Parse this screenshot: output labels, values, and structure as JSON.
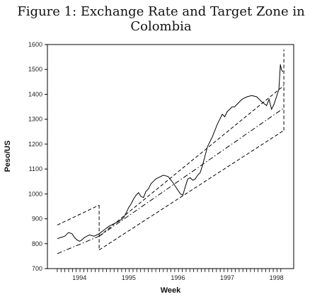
{
  "figure_title": "Figure 1: Exchange Rate and Target Zone in Colombia",
  "chart_data": {
    "type": "line",
    "title": "Figure 1: Exchange Rate and Target Zone in Colombia",
    "xlabel": "Week",
    "ylabel": "Peso/US",
    "ylim": [
      700,
      1600
    ],
    "xlim": [
      1993.35,
      1998.35
    ],
    "yticks": [
      700,
      800,
      900,
      1000,
      1100,
      1200,
      1300,
      1400,
      1500,
      1600
    ],
    "xtick_labels": [
      "1994",
      "1995",
      "1996",
      "1997",
      "1998"
    ],
    "xtick_positions": [
      1994.0,
      1995.0,
      1996.0,
      1997.0,
      1998.0
    ],
    "grid": false,
    "legend": "none",
    "series": [
      {
        "style": "solid",
        "x": [
          1993.55,
          1993.62,
          1993.7,
          1993.78,
          1993.85,
          1993.9,
          1993.95,
          1994.0,
          1994.05,
          1994.1,
          1994.15,
          1994.2,
          1994.3,
          1994.4,
          1994.5,
          1994.6,
          1994.7,
          1994.8,
          1994.9,
          1995.0,
          1995.05,
          1995.1,
          1995.15,
          1995.2,
          1995.25,
          1995.3,
          1995.35,
          1995.4,
          1995.45,
          1995.5,
          1995.55,
          1995.6,
          1995.7,
          1995.8,
          1995.9,
          1996.0,
          1996.05,
          1996.1,
          1996.15,
          1996.2,
          1996.25,
          1996.3,
          1996.35,
          1996.4,
          1996.45,
          1996.5,
          1996.6,
          1996.7,
          1996.8,
          1996.85,
          1996.9,
          1996.95,
          1997.0,
          1997.05,
          1997.1,
          1997.15,
          1997.2,
          1997.25,
          1997.3,
          1997.35,
          1997.4,
          1997.5,
          1997.6,
          1997.7,
          1997.8,
          1997.85,
          1997.9,
          1997.95,
          1998.0,
          1998.05,
          1998.08,
          1998.1,
          1998.13
        ],
        "y": [
          820,
          825,
          830,
          845,
          840,
          825,
          815,
          810,
          815,
          825,
          830,
          835,
          830,
          840,
          855,
          870,
          880,
          890,
          905,
          945,
          960,
          980,
          995,
          1005,
          990,
          985,
          1010,
          1020,
          1040,
          1050,
          1060,
          1065,
          1075,
          1070,
          1045,
          1015,
          1000,
          995,
          1030,
          1060,
          1065,
          1055,
          1060,
          1075,
          1085,
          1115,
          1190,
          1230,
          1280,
          1300,
          1320,
          1310,
          1330,
          1340,
          1350,
          1350,
          1360,
          1370,
          1380,
          1385,
          1390,
          1395,
          1390,
          1370,
          1355,
          1380,
          1340,
          1360,
          1390,
          1420,
          1520,
          1500,
          1490
        ]
      },
      {
        "style": "dashed",
        "segments": [
          {
            "x": [
              1993.55,
              1994.4
            ],
            "y": [
              875,
              955
            ]
          },
          {
            "x": [
              1994.4,
              1994.4
            ],
            "y": [
              955,
              775
            ]
          },
          {
            "x": [
              1994.4,
              1998.15
            ],
            "y": [
              775,
              1255
            ]
          },
          {
            "x": [
              1998.15,
              1998.15
            ],
            "y": [
              1255,
              1580
            ]
          },
          {
            "x": [
              1994.4,
              1998.15
            ],
            "y": [
              830,
              1435
            ]
          }
        ]
      },
      {
        "style": "dashdot",
        "segments": [
          {
            "x": [
              1993.55,
              1994.4
            ],
            "y": [
              760,
              830
            ]
          },
          {
            "x": [
              1994.4,
              1998.15
            ],
            "y": [
              830,
              1345
            ]
          }
        ]
      }
    ]
  }
}
